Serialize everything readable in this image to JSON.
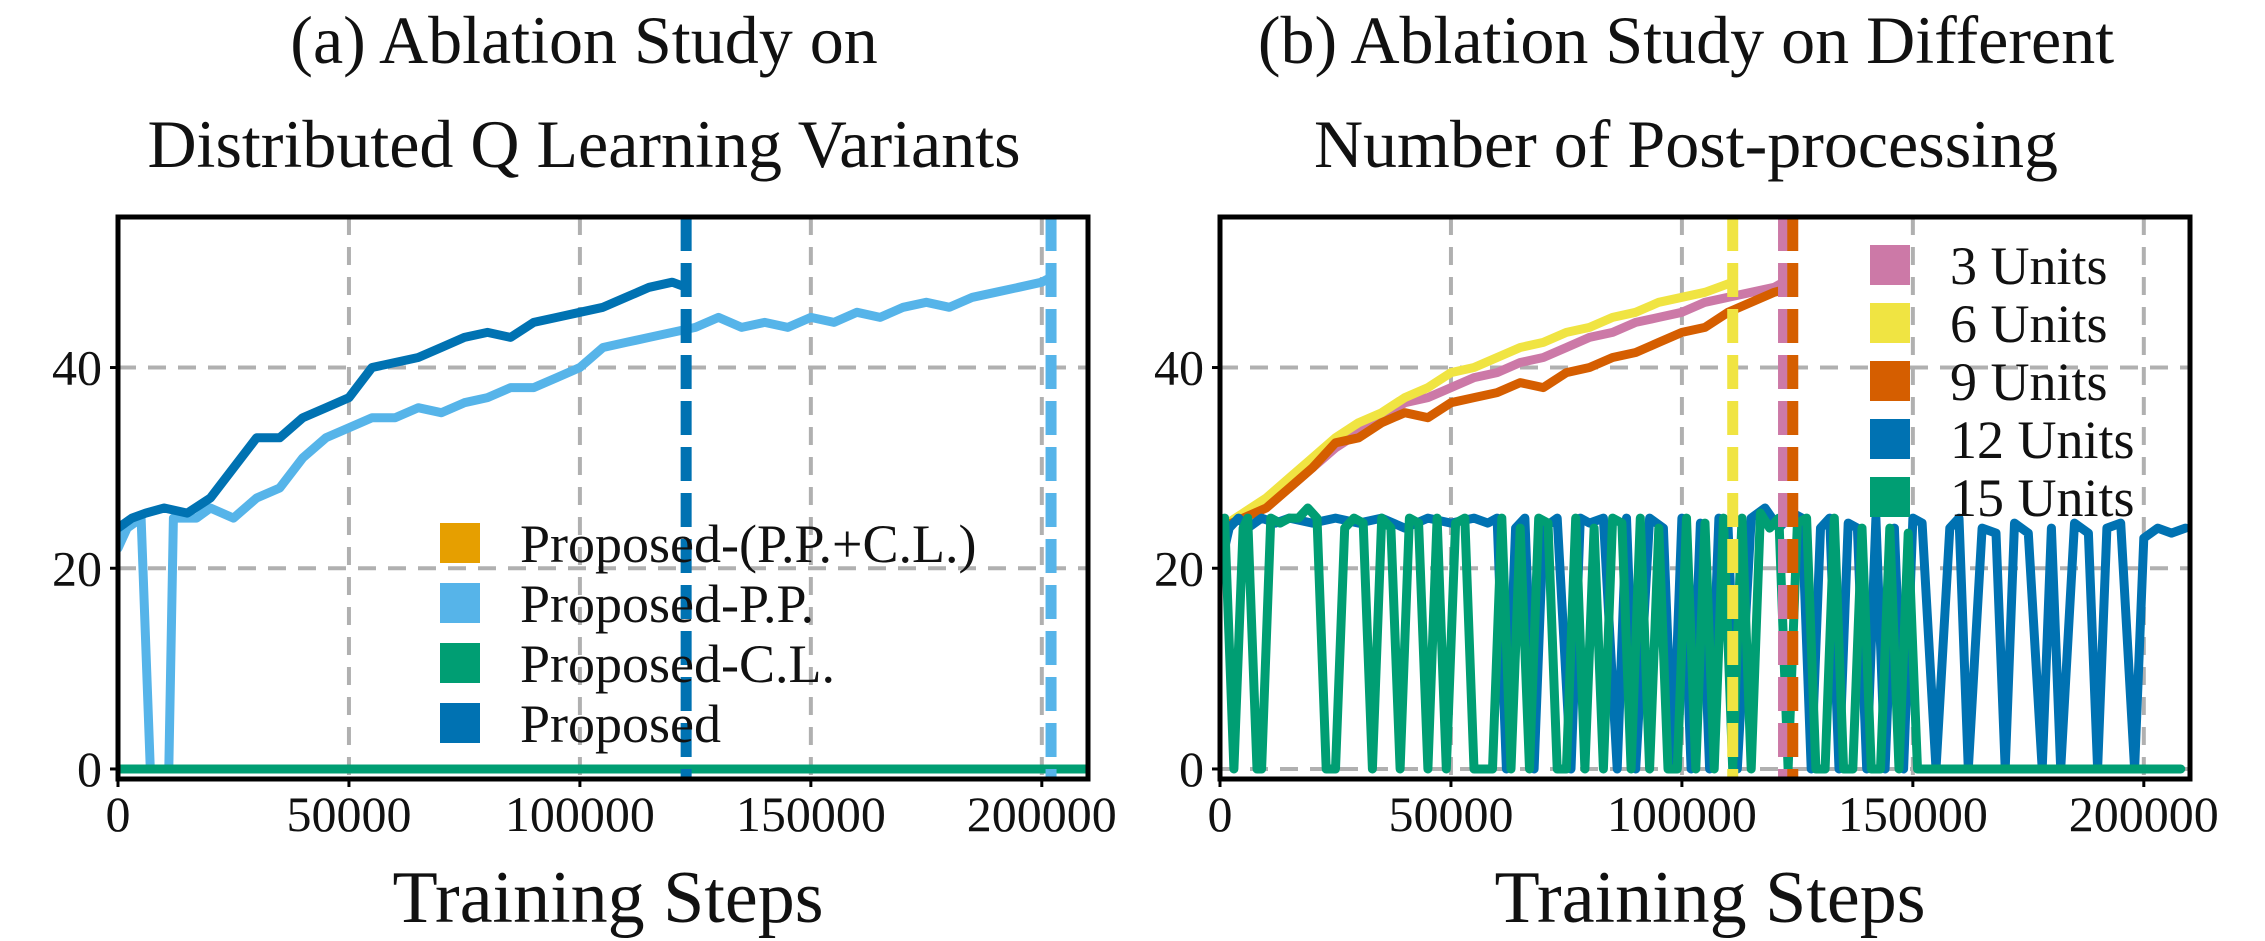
{
  "colors": {
    "orange": "#E69F00",
    "light_blue": "#56B4E9",
    "green": "#009E73",
    "blue": "#0072B2",
    "pink": "#CC79A7",
    "yellow": "#F0E442",
    "vermillion": "#D55E00",
    "grid": "#b0b0b0"
  },
  "chart_data": [
    {
      "type": "line",
      "title_lines": [
        "(a) Ablation Study on",
        "Distributed Q Learning Variants"
      ],
      "xlabel": "Training Steps",
      "ylabel": "",
      "xlim": [
        0,
        210000
      ],
      "ylim": [
        -1,
        55
      ],
      "xticks": [
        0,
        50000,
        100000,
        150000,
        200000
      ],
      "xtick_labels": [
        "0",
        "50000",
        "100000",
        "150000",
        "200000"
      ],
      "yticks": [
        0,
        20,
        40
      ],
      "ytick_labels": [
        "0",
        "20",
        "40"
      ],
      "grid": true,
      "legend_position": "bottom-right",
      "vlines": [
        {
          "x": 123000,
          "series": "Proposed"
        },
        {
          "x": 202000,
          "series": "Proposed-P.P."
        }
      ],
      "series": [
        {
          "name": "Proposed-(P.P.+C.L.)",
          "color_key": "orange",
          "x": [
            0,
            210000
          ],
          "y": [
            0,
            0
          ]
        },
        {
          "name": "Proposed-P.P.",
          "color_key": "light_blue",
          "x": [
            0,
            2000,
            5000,
            7000,
            9000,
            11000,
            12000,
            14000,
            17000,
            20000,
            25000,
            30000,
            35000,
            40000,
            45000,
            50000,
            55000,
            60000,
            65000,
            70000,
            75000,
            80000,
            85000,
            90000,
            95000,
            100000,
            105000,
            110000,
            115000,
            120000,
            125000,
            130000,
            135000,
            140000,
            145000,
            150000,
            155000,
            160000,
            165000,
            170000,
            175000,
            180000,
            185000,
            190000,
            195000,
            200000,
            202000
          ],
          "y": [
            22,
            24,
            25,
            0,
            0,
            0,
            25,
            25,
            25,
            26,
            25,
            27,
            28,
            31,
            33,
            34,
            35,
            35,
            36,
            35.5,
            36.5,
            37,
            38,
            38,
            39,
            40,
            42,
            42.5,
            43,
            43.5,
            44,
            45,
            44,
            44.5,
            44,
            45,
            44.5,
            45.5,
            45,
            46,
            46.5,
            46,
            47,
            47.5,
            48,
            48.5,
            49
          ]
        },
        {
          "name": "Proposed-C.L.",
          "color_key": "green",
          "x": [
            0,
            210000
          ],
          "y": [
            0,
            0
          ]
        },
        {
          "name": "Proposed",
          "color_key": "blue",
          "x": [
            0,
            3000,
            6000,
            10000,
            15000,
            20000,
            25000,
            30000,
            35000,
            40000,
            45000,
            50000,
            55000,
            60000,
            65000,
            70000,
            75000,
            80000,
            85000,
            90000,
            95000,
            100000,
            105000,
            110000,
            115000,
            120000,
            123000
          ],
          "y": [
            24,
            25,
            25.5,
            26,
            25.5,
            27,
            30,
            33,
            33,
            35,
            36,
            37,
            40,
            40.5,
            41,
            42,
            43,
            43.5,
            43,
            44.5,
            45,
            45.5,
            46,
            47,
            48,
            48.5,
            48
          ]
        }
      ]
    },
    {
      "type": "line",
      "title_lines": [
        "(b) Ablation Study on Different",
        "Number of Post-processing"
      ],
      "xlabel": "Training Steps",
      "ylabel": "",
      "xlim": [
        0,
        210000
      ],
      "ylim": [
        -1,
        55
      ],
      "xticks": [
        0,
        50000,
        100000,
        150000,
        200000
      ],
      "xtick_labels": [
        "0",
        "50000",
        "100000",
        "150000",
        "200000"
      ],
      "yticks": [
        0,
        20,
        40
      ],
      "ytick_labels": [
        "0",
        "20",
        "40"
      ],
      "grid": true,
      "legend_position": "top-right",
      "vlines": [
        {
          "x": 111000,
          "series": "6 Units"
        },
        {
          "x": 122000,
          "series": "3 Units"
        },
        {
          "x": 124000,
          "series": "9 Units"
        }
      ],
      "series": [
        {
          "name": "3 Units",
          "color_key": "pink",
          "x": [
            0,
            5000,
            10000,
            15000,
            20000,
            25000,
            30000,
            35000,
            40000,
            45000,
            50000,
            55000,
            60000,
            65000,
            70000,
            75000,
            80000,
            85000,
            90000,
            95000,
            100000,
            105000,
            110000,
            115000,
            120000,
            122000
          ],
          "y": [
            24,
            25,
            26.5,
            28,
            30,
            32,
            33.5,
            35,
            36.5,
            37,
            38,
            39,
            39.5,
            40.5,
            41,
            42,
            43,
            43.5,
            44.5,
            45,
            45.5,
            46.5,
            47,
            47.5,
            48,
            48.5
          ]
        },
        {
          "name": "6 Units",
          "color_key": "yellow",
          "x": [
            0,
            5000,
            10000,
            15000,
            20000,
            25000,
            30000,
            35000,
            40000,
            45000,
            50000,
            55000,
            60000,
            65000,
            70000,
            75000,
            80000,
            85000,
            90000,
            95000,
            100000,
            105000,
            111000
          ],
          "y": [
            24,
            25.5,
            27,
            29,
            31,
            33,
            34.5,
            35.5,
            37,
            38,
            39.5,
            40,
            41,
            42,
            42.5,
            43.5,
            44,
            45,
            45.5,
            46.5,
            47,
            47.5,
            48.5
          ]
        },
        {
          "name": "9 Units",
          "color_key": "vermillion",
          "x": [
            0,
            5000,
            10000,
            15000,
            20000,
            25000,
            30000,
            35000,
            40000,
            45000,
            50000,
            55000,
            60000,
            65000,
            70000,
            75000,
            80000,
            85000,
            90000,
            95000,
            100000,
            105000,
            110000,
            115000,
            120000,
            124000
          ],
          "y": [
            24,
            25,
            26,
            28,
            30,
            32.5,
            33,
            34.5,
            35.5,
            35,
            36.5,
            37,
            37.5,
            38.5,
            38,
            39.5,
            40,
            41,
            41.5,
            42.5,
            43.5,
            44,
            45.5,
            46.5,
            47.5,
            48
          ]
        },
        {
          "name": "12 Units",
          "color_key": "blue",
          "x": [
            0,
            2000,
            4000,
            6000,
            9000,
            12000,
            15000,
            20000,
            25000,
            30000,
            35000,
            40000,
            45000,
            50000,
            55000,
            58000,
            60000,
            62000,
            64000,
            66000,
            68000,
            70000,
            73000,
            76000,
            78000,
            80000,
            83000,
            86000,
            88000,
            90000,
            93000,
            96000,
            98000,
            100000,
            102000,
            104000,
            106000,
            108000,
            110000,
            112000,
            115000,
            118000,
            121000,
            124000,
            126000,
            128000,
            130000,
            132000,
            134000,
            136000,
            138000,
            140000,
            142000,
            144000,
            146000,
            148000,
            150000,
            152000,
            155000,
            158000,
            160000,
            162000,
            165000,
            168000,
            170000,
            172000,
            175000,
            178000,
            180000,
            182000,
            185000,
            188000,
            190000,
            192000,
            195000,
            198000,
            200000,
            203000,
            206000,
            209000
          ],
          "y": [
            20,
            24,
            25,
            24,
            25,
            24.5,
            25,
            24.5,
            25,
            24.5,
            25,
            24,
            25,
            24.5,
            25,
            24.5,
            25,
            0,
            24,
            25,
            0,
            24,
            25,
            0,
            25,
            24.5,
            25,
            0,
            25,
            0,
            25,
            24,
            0,
            25,
            0,
            24.5,
            0,
            25,
            24,
            0,
            25,
            26,
            24,
            25.5,
            25,
            0,
            24,
            25,
            0,
            24.5,
            24,
            0,
            25,
            0,
            24,
            0,
            25,
            24.5,
            0,
            24,
            25,
            0,
            24,
            23.5,
            0,
            24.5,
            23.5,
            0,
            24,
            0,
            24.5,
            23.5,
            0,
            24,
            24.5,
            0,
            23,
            24,
            23.5,
            24
          ]
        },
        {
          "name": "15 Units",
          "color_key": "green",
          "x": [
            0,
            1000,
            3000,
            5000,
            6000,
            8000,
            9000,
            11000,
            13000,
            15000,
            17000,
            19000,
            21000,
            23000,
            25000,
            27000,
            29000,
            31000,
            33000,
            35000,
            37000,
            39000,
            41000,
            43000,
            45000,
            47000,
            49000,
            51000,
            53000,
            55000,
            57000,
            59000,
            61000,
            63000,
            65000,
            67000,
            69000,
            71000,
            73000,
            75000,
            77000,
            79000,
            81000,
            83000,
            85000,
            87000,
            89000,
            91000,
            93000,
            95000,
            97000,
            99000,
            101000,
            103000,
            105000,
            107000,
            109000,
            111000,
            113000,
            115000,
            117000,
            119000,
            121000,
            123000,
            125000,
            127000,
            129000,
            131000,
            133000,
            135000,
            137000,
            139000,
            141000,
            143000,
            145000,
            147000,
            149000,
            151000,
            155000,
            160000,
            170000,
            180000,
            190000,
            200000,
            208000
          ],
          "y": [
            24,
            25,
            0,
            24,
            25,
            0,
            0,
            25,
            24.5,
            25,
            25,
            26,
            25,
            0,
            0,
            24,
            25,
            24.5,
            0,
            25,
            24,
            0,
            25,
            24.5,
            0,
            25,
            0,
            24.5,
            25,
            0,
            0,
            0,
            25,
            0,
            24,
            0,
            25,
            24.5,
            0,
            0,
            25,
            0,
            24,
            0,
            25,
            24.5,
            0,
            25,
            0,
            24,
            0,
            0,
            25,
            0,
            24.5,
            0,
            25,
            0,
            25,
            0,
            25.5,
            24,
            25,
            0,
            24.5,
            25,
            0,
            0,
            25,
            0,
            0,
            24,
            0,
            0,
            24,
            0,
            23.5,
            0,
            0,
            0,
            0,
            0,
            0,
            0,
            0
          ]
        }
      ]
    }
  ]
}
